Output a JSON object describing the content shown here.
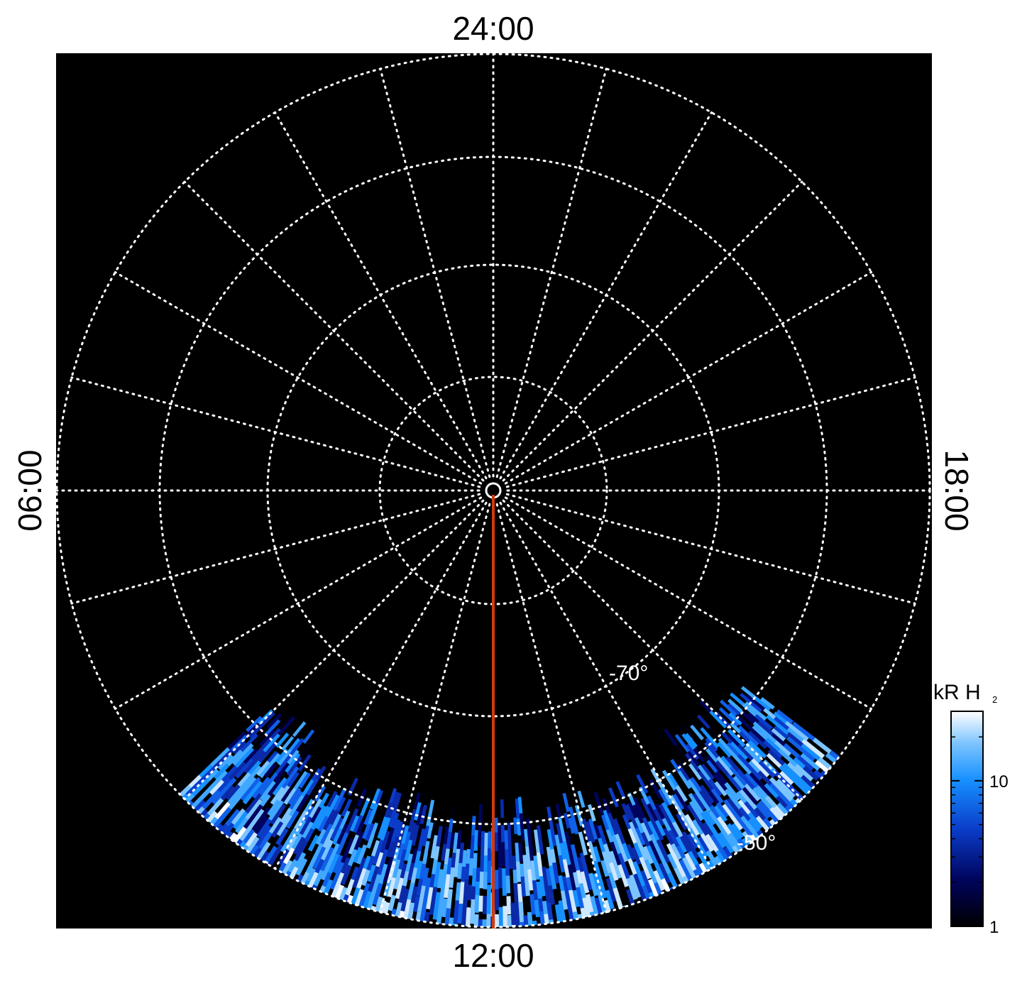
{
  "hour_labels": {
    "top": "24:00",
    "bottom": "12:00",
    "left": "06:00",
    "right": "18:00"
  },
  "latitude_labels": [
    "-70°",
    "-50°"
  ],
  "colorbar": {
    "label": "kR H",
    "label_subscript": "2",
    "lim": [
      1,
      30
    ],
    "ticks": [
      1,
      10
    ],
    "log": true
  }
}
